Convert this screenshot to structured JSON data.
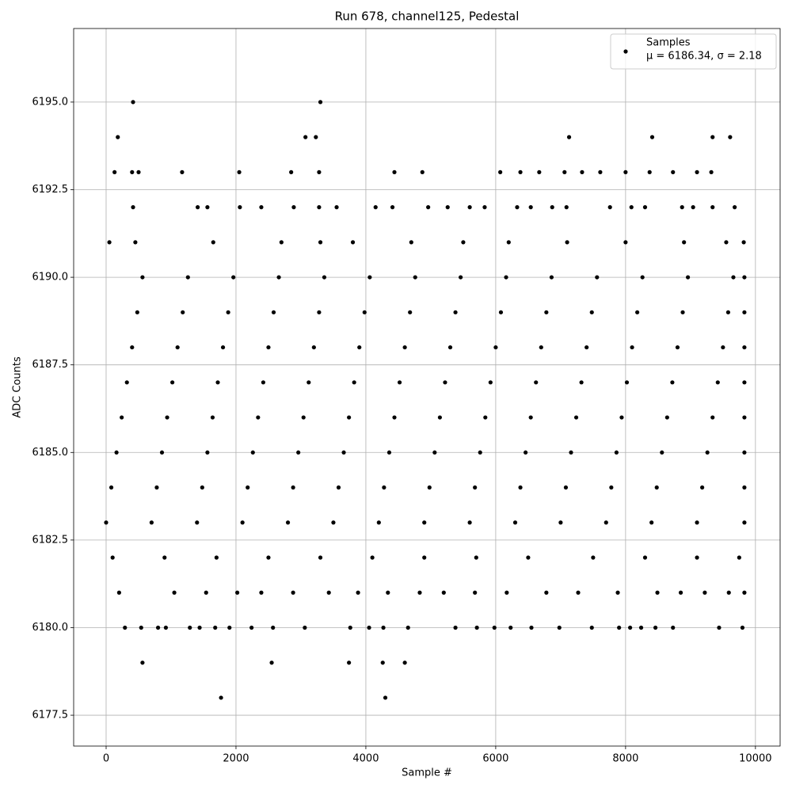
{
  "chart_data": {
    "type": "scatter",
    "title": "Run 678, channel125, Pedestal",
    "x_label": "Sample #",
    "y_label": "ADC Counts",
    "legend_note": "μ = 6186.34, σ = 2.18",
    "legend_position": "upper right",
    "grid": true,
    "xlim": [
      -500,
      10380
    ],
    "ylim": [
      6176.62,
      6197.1
    ],
    "xticks": [
      0,
      2000,
      4000,
      6000,
      8000,
      10000
    ],
    "yticks": [
      {
        "value": 6177.5,
        "label": "6177.5"
      },
      {
        "value": 6180,
        "label": "6180.0"
      },
      {
        "value": 6182.5,
        "label": "6182.5"
      },
      {
        "value": 6185,
        "label": "6185.0"
      },
      {
        "value": 6187.5,
        "label": "6187.5"
      },
      {
        "value": 6190,
        "label": "6190.0"
      },
      {
        "value": 6192.5,
        "label": "6192.5"
      },
      {
        "value": 6195,
        "label": "6195.0"
      }
    ],
    "x": [
      415,
      3300,
      180,
      3070,
      3230,
      7130,
      8410,
      9340,
      9610,
      130,
      400,
      500,
      1170,
      2050,
      2850,
      3280,
      4440,
      4870,
      6070,
      6380,
      6670,
      7060,
      7330,
      7610,
      8000,
      8370,
      8730,
      9100,
      9320,
      415,
      1410,
      1560,
      2060,
      2390,
      2890,
      3280,
      3550,
      4150,
      4410,
      4960,
      5260,
      5600,
      5830,
      6330,
      6540,
      6870,
      7090,
      7760,
      8090,
      8300,
      8870,
      9040,
      9340,
      9680,
      50,
      450,
      1650,
      2700,
      3300,
      3800,
      4700,
      5500,
      6200,
      7100,
      8000,
      8900,
      9550,
      9820,
      560,
      1260,
      1960,
      2660,
      3360,
      4060,
      4760,
      5460,
      6160,
      6860,
      7560,
      8260,
      8960,
      9660,
      9830,
      480,
      1180,
      1880,
      2580,
      3280,
      3980,
      4680,
      5380,
      6080,
      6780,
      7480,
      8180,
      8880,
      9580,
      9830,
      400,
      1100,
      1800,
      2500,
      3200,
      3900,
      4600,
      5300,
      6000,
      6700,
      7400,
      8100,
      8800,
      9500,
      9830,
      320,
      1020,
      1720,
      2420,
      3120,
      3820,
      4520,
      5220,
      5920,
      6620,
      7320,
      8020,
      8720,
      9420,
      9830,
      240,
      940,
      1640,
      2340,
      3040,
      3740,
      4440,
      5140,
      5840,
      6540,
      7240,
      7940,
      8640,
      9340,
      9830,
      160,
      860,
      1560,
      2260,
      2960,
      3660,
      4360,
      5060,
      5760,
      6460,
      7160,
      7860,
      8560,
      9260,
      9830,
      80,
      780,
      1480,
      2180,
      2880,
      3580,
      4280,
      4980,
      5680,
      6380,
      7080,
      7780,
      8480,
      9180,
      9830,
      0,
      700,
      1400,
      2100,
      2800,
      3500,
      4200,
      4900,
      5600,
      6300,
      7000,
      7700,
      8400,
      9100,
      9830,
      100,
      900,
      1700,
      2500,
      3300,
      4100,
      4900,
      5700,
      6500,
      7500,
      8300,
      9100,
      9750,
      200,
      1050,
      1540,
      2020,
      2390,
      2880,
      3430,
      3880,
      4340,
      4830,
      5200,
      5680,
      6170,
      6780,
      7270,
      7880,
      8490,
      8850,
      9220,
      9590,
      9830,
      290,
      540,
      800,
      920,
      1290,
      1440,
      1680,
      1900,
      2240,
      2570,
      3060,
      3760,
      4050,
      4270,
      4650,
      5380,
      5710,
      5980,
      6230,
      6550,
      6980,
      7480,
      7900,
      8070,
      8240,
      8460,
      8730,
      9440,
      9800,
      560,
      2550,
      3740,
      4260,
      4600,
      1770,
      4300
    ],
    "series": [
      {
        "name": "Samples",
        "color": "#000000",
        "values": [
          6195,
          6195,
          6194,
          6194,
          6194,
          6194,
          6194,
          6194,
          6194,
          6193,
          6193,
          6193,
          6193,
          6193,
          6193,
          6193,
          6193,
          6193,
          6193,
          6193,
          6193,
          6193,
          6193,
          6193,
          6193,
          6193,
          6193,
          6193,
          6193,
          6192,
          6192,
          6192,
          6192,
          6192,
          6192,
          6192,
          6192,
          6192,
          6192,
          6192,
          6192,
          6192,
          6192,
          6192,
          6192,
          6192,
          6192,
          6192,
          6192,
          6192,
          6192,
          6192,
          6192,
          6192,
          6191,
          6191,
          6191,
          6191,
          6191,
          6191,
          6191,
          6191,
          6191,
          6191,
          6191,
          6191,
          6191,
          6191,
          6190,
          6190,
          6190,
          6190,
          6190,
          6190,
          6190,
          6190,
          6190,
          6190,
          6190,
          6190,
          6190,
          6190,
          6190,
          6189,
          6189,
          6189,
          6189,
          6189,
          6189,
          6189,
          6189,
          6189,
          6189,
          6189,
          6189,
          6189,
          6189,
          6189,
          6188,
          6188,
          6188,
          6188,
          6188,
          6188,
          6188,
          6188,
          6188,
          6188,
          6188,
          6188,
          6188,
          6188,
          6188,
          6187,
          6187,
          6187,
          6187,
          6187,
          6187,
          6187,
          6187,
          6187,
          6187,
          6187,
          6187,
          6187,
          6187,
          6187,
          6186,
          6186,
          6186,
          6186,
          6186,
          6186,
          6186,
          6186,
          6186,
          6186,
          6186,
          6186,
          6186,
          6186,
          6186,
          6185,
          6185,
          6185,
          6185,
          6185,
          6185,
          6185,
          6185,
          6185,
          6185,
          6185,
          6185,
          6185,
          6185,
          6185,
          6184,
          6184,
          6184,
          6184,
          6184,
          6184,
          6184,
          6184,
          6184,
          6184,
          6184,
          6184,
          6184,
          6184,
          6184,
          6183,
          6183,
          6183,
          6183,
          6183,
          6183,
          6183,
          6183,
          6183,
          6183,
          6183,
          6183,
          6183,
          6183,
          6183,
          6182,
          6182,
          6182,
          6182,
          6182,
          6182,
          6182,
          6182,
          6182,
          6182,
          6182,
          6182,
          6182,
          6181,
          6181,
          6181,
          6181,
          6181,
          6181,
          6181,
          6181,
          6181,
          6181,
          6181,
          6181,
          6181,
          6181,
          6181,
          6181,
          6181,
          6181,
          6181,
          6181,
          6181,
          6180,
          6180,
          6180,
          6180,
          6180,
          6180,
          6180,
          6180,
          6180,
          6180,
          6180,
          6180,
          6180,
          6180,
          6180,
          6180,
          6180,
          6180,
          6180,
          6180,
          6180,
          6180,
          6180,
          6180,
          6180,
          6180,
          6180,
          6180,
          6180,
          6179,
          6179,
          6179,
          6179,
          6179,
          6178,
          6178
        ]
      }
    ]
  }
}
